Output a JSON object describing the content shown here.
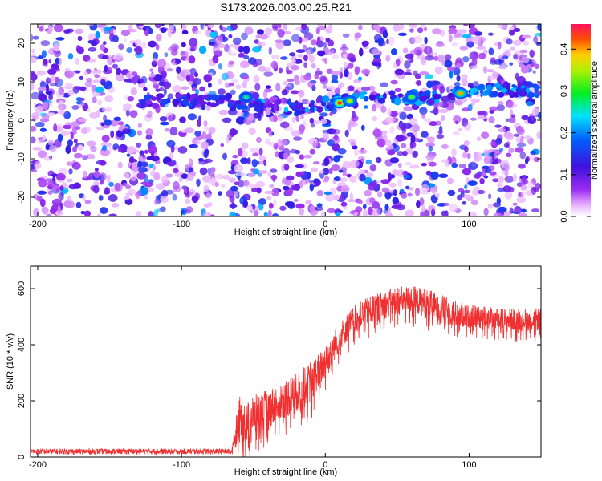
{
  "figure_title": "S173.2026.003.00.25.R21",
  "colors": {
    "snr_line": "#f03030",
    "background": "#ffffff",
    "axis": "#000000"
  },
  "chart_data": [
    {
      "type": "heatmap",
      "title": "S173.2026.003.00.25.R21",
      "xlabel": "Height of straight line (km)",
      "ylabel": "Frequency (Hz)",
      "xlim": [
        -205,
        150
      ],
      "ylim": [
        -25,
        25
      ],
      "xticks": [
        -200,
        -100,
        0,
        100
      ],
      "yticks": [
        -20,
        -10,
        0,
        10,
        20
      ],
      "colorbar": {
        "label": "Normalized spectral amplitude",
        "range": [
          0.0,
          0.46
        ],
        "ticks": [
          0.0,
          0.1,
          0.2,
          0.3,
          0.4
        ],
        "colormap": "rainbow (white-magenta-purple-blue-cyan-green-yellow-orange-red)"
      },
      "signal_track": {
        "description": "narrow-band feature drifting in frequency with height",
        "points": [
          [
            -130,
            5
          ],
          [
            -70,
            5
          ],
          [
            -40,
            4
          ],
          [
            -20,
            3
          ],
          [
            0,
            4
          ],
          [
            10,
            5
          ],
          [
            20,
            6
          ],
          [
            40,
            6
          ],
          [
            60,
            6
          ],
          [
            80,
            6
          ],
          [
            100,
            7
          ],
          [
            120,
            8
          ],
          [
            150,
            8
          ]
        ],
        "peaks": [
          {
            "x": 10,
            "y": 4.5,
            "value": 0.44
          },
          {
            "x": 17,
            "y": 5,
            "value": 0.35
          },
          {
            "x": 94,
            "y": 7,
            "value": 0.4
          },
          {
            "x": 60,
            "y": 6,
            "value": 0.32
          },
          {
            "x": -55,
            "y": 6,
            "value": 0.27
          }
        ]
      }
    },
    {
      "type": "line",
      "title": "",
      "xlabel": "Height of straight line (km)",
      "ylabel": "SNR (10 * v/v)",
      "xlim": [
        -205,
        150
      ],
      "ylim": [
        0,
        680
      ],
      "xticks": [
        -200,
        -100,
        0,
        100
      ],
      "yticks": [
        0,
        200,
        400,
        600
      ],
      "series": [
        {
          "name": "SNR",
          "envelope_x": [
            -205,
            -150,
            -100,
            -65,
            -60,
            -55,
            -50,
            -40,
            -30,
            -20,
            -10,
            0,
            10,
            20,
            30,
            40,
            50,
            60,
            70,
            80,
            90,
            100,
            110,
            120,
            130,
            140,
            150
          ],
          "envelope_mean": [
            20,
            20,
            20,
            20,
            140,
            120,
            150,
            170,
            200,
            230,
            270,
            340,
            430,
            490,
            520,
            540,
            560,
            560,
            550,
            530,
            510,
            500,
            500,
            490,
            490,
            490,
            490
          ],
          "envelope_spread": [
            10,
            10,
            10,
            10,
            80,
            70,
            70,
            70,
            70,
            70,
            70,
            60,
            50,
            50,
            50,
            50,
            50,
            50,
            50,
            50,
            50,
            40,
            40,
            40,
            40,
            40,
            40
          ]
        }
      ]
    }
  ]
}
